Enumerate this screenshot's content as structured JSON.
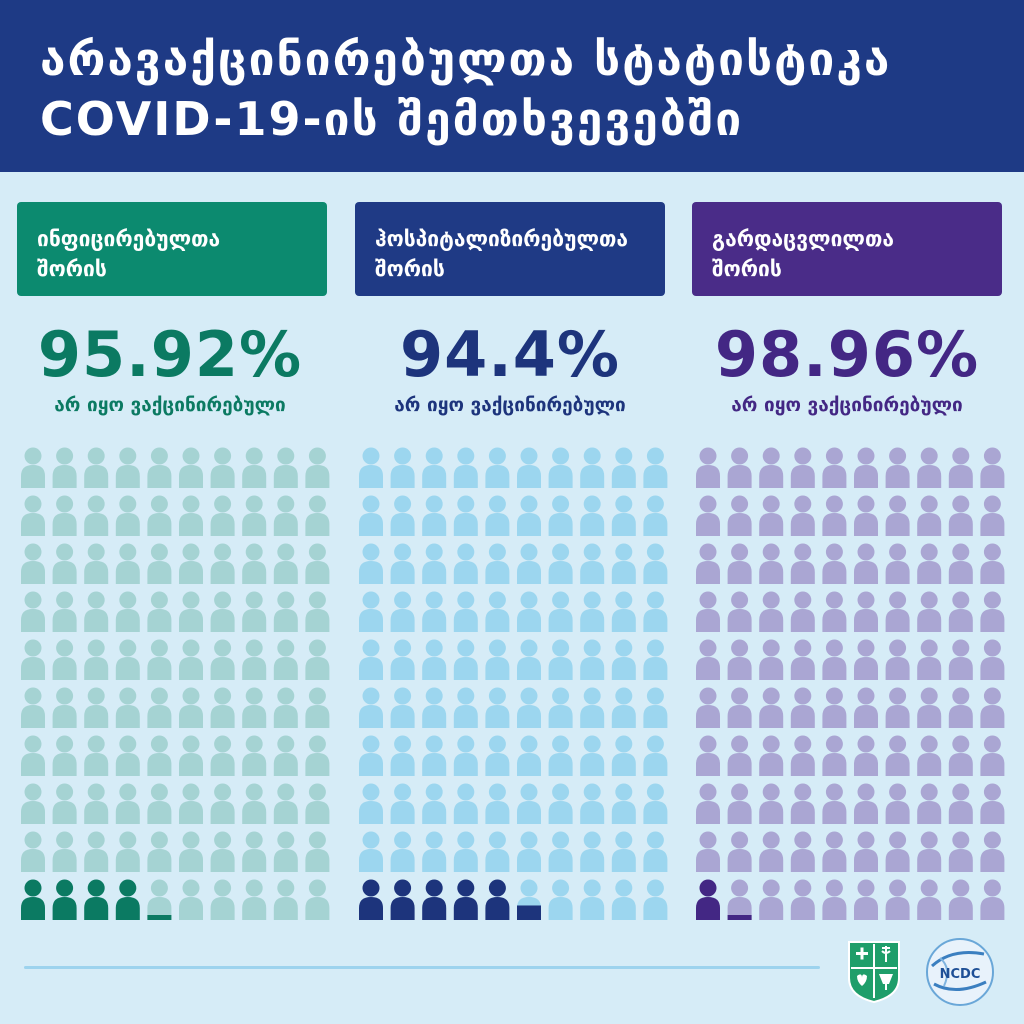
{
  "header": {
    "title_line1": "არავაქცინირებულთა სტატისტიკა",
    "title_line2": "COVID-19-ის შემთხვევებში"
  },
  "chart_data": {
    "type": "pictogram",
    "units_per_chart": 100,
    "rows": 10,
    "columns": 10,
    "series": [
      {
        "label_line1": "ინფიცირებულთა",
        "label_line2": "შორის",
        "value": 95.92,
        "value_text": "95.92%",
        "note": "არ იყო ვაქცინირებული",
        "header_color": "#0c8a6f",
        "dark_color": "#0b7a62",
        "light_color": "#a5d3d3"
      },
      {
        "label_line1": "ჰოსპიტალიზირებულთა",
        "label_line2": "შორის",
        "value": 94.4,
        "value_text": "94.4%",
        "note": "არ იყო ვაქცინირებული",
        "header_color": "#1f3a85",
        "dark_color": "#1d347c",
        "light_color": "#9cd6ef"
      },
      {
        "label_line1": "გარდაცვლილთა",
        "label_line2": "შორის",
        "value": 98.96,
        "value_text": "98.96%",
        "note": "არ იყო ვაქცინირებული",
        "header_color": "#4a2c88",
        "dark_color": "#432784",
        "light_color": "#aaa6d3"
      }
    ]
  },
  "logos": {
    "ncdc_text": "NCDC"
  }
}
